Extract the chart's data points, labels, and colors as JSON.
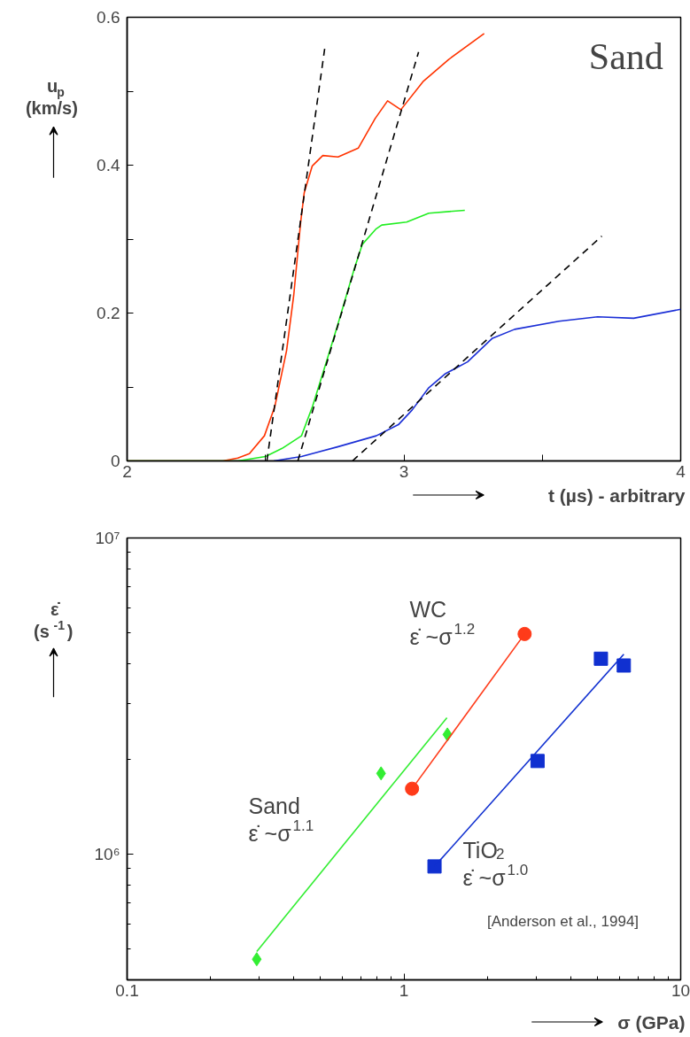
{
  "chart_data": [
    {
      "type": "line",
      "ylabel": "u$_{p}$\n(km/s)",
      "xlabel": "t (µs) - arbitrary",
      "annotations": [
        "Sand"
      ],
      "xlim": [
        2,
        4
      ],
      "ylim": [
        0,
        0.6
      ],
      "xticks": [
        2,
        {
          "value": 2.5,
          "label": null
        },
        3,
        {
          "value": 3.5,
          "label": null
        },
        4
      ],
      "yticks": [
        0,
        {
          "value": 0.1,
          "label": null
        },
        0.2,
        {
          "value": 0.3,
          "label": null
        },
        0.4,
        {
          "value": 0.5,
          "label": null
        },
        0.6
      ],
      "series": [
        {
          "color": "#ff3300",
          "x": [
            2.0,
            2.346,
            2.4,
            2.442,
            2.496,
            2.534,
            2.576,
            2.602,
            2.627,
            2.64,
            2.669,
            2.707,
            2.762,
            2.835,
            2.896,
            2.941,
            2.989,
            3.069,
            3.162,
            3.29
          ],
          "values": [
            0,
            0,
            0.004,
            0.01,
            0.034,
            0.074,
            0.149,
            0.224,
            0.323,
            0.363,
            0.399,
            0.413,
            0.411,
            0.423,
            0.463,
            0.487,
            0.475,
            0.513,
            0.543,
            0.578
          ]
        },
        {
          "color": "#22ee22",
          "x": [
            2.0,
            2.4,
            2.5,
            2.56,
            2.63,
            2.67,
            2.72,
            2.76,
            2.82,
            2.85,
            2.9,
            2.92,
            3.01,
            3.09,
            3.22
          ],
          "values": [
            0,
            0,
            0.006,
            0.017,
            0.034,
            0.074,
            0.134,
            0.183,
            0.259,
            0.293,
            0.314,
            0.319,
            0.323,
            0.335,
            0.339
          ]
        },
        {
          "color": "#1a2ed6",
          "x": [
            2.53,
            2.63,
            2.76,
            2.9,
            2.98,
            3.03,
            3.09,
            3.15,
            3.23,
            3.32,
            3.4,
            3.56,
            3.7,
            3.83,
            4.0
          ],
          "values": [
            0,
            0.006,
            0.019,
            0.034,
            0.049,
            0.069,
            0.099,
            0.118,
            0.134,
            0.166,
            0.178,
            0.189,
            0.195,
            0.193,
            0.205
          ]
        },
        {
          "color": "#000000",
          "line_style": "dashed",
          "x": [
            2.505,
            2.714
          ],
          "values": [
            0,
            0.558
          ]
        },
        {
          "color": "#000000",
          "line_style": "dashed",
          "x": [
            2.617,
            3.053
          ],
          "values": [
            0,
            0.553
          ]
        },
        {
          "color": "#000000",
          "line_style": "dashed",
          "x": [
            2.814,
            3.715
          ],
          "values": [
            0,
            0.304
          ]
        }
      ]
    },
    {
      "type": "scatter",
      "log": "xy",
      "ylabel": "ε̇\n(s$^{-1}$)",
      "xlabel": "σ (GPa)",
      "xlim": [
        0.1,
        10
      ],
      "ylim": [
        400000,
        10000000
      ],
      "xticks": [
        0.1,
        {
          "value": 0.2,
          "label": null
        },
        {
          "value": 0.3,
          "label": null
        },
        {
          "value": 0.4,
          "label": null
        },
        {
          "value": 0.5,
          "label": null
        },
        {
          "value": 0.6,
          "label": null
        },
        {
          "value": 0.7,
          "label": null
        },
        {
          "value": 0.8,
          "label": null
        },
        {
          "value": 0.9,
          "label": null
        },
        1,
        {
          "value": 2,
          "label": null
        },
        {
          "value": 3,
          "label": null
        },
        {
          "value": 4,
          "label": null
        },
        {
          "value": 5,
          "label": null
        },
        {
          "value": 6,
          "label": null
        },
        {
          "value": 7,
          "label": null
        },
        {
          "value": 8,
          "label": null
        },
        {
          "value": 9,
          "label": null
        },
        10
      ],
      "yticks": [
        {
          "value": 500000,
          "label": null
        },
        {
          "value": 600000,
          "label": null
        },
        {
          "value": 700000,
          "label": null
        },
        {
          "value": 800000,
          "label": null
        },
        {
          "value": 900000,
          "label": null
        },
        {
          "value": 1000000,
          "label": "10⁶"
        },
        {
          "value": 2000000,
          "label": null
        },
        {
          "value": 3000000,
          "label": null
        },
        {
          "value": 4000000,
          "label": null
        },
        {
          "value": 5000000,
          "label": null
        },
        {
          "value": 6000000,
          "label": null
        },
        {
          "value": 7000000,
          "label": null
        },
        {
          "value": 8000000,
          "label": null
        },
        {
          "value": 9000000,
          "label": null
        },
        {
          "value": 10000000,
          "label": "10⁷"
        }
      ],
      "annotations": [
        "WC\nε̇ ~σ$^{1.2}$",
        "Sand\nε̇ ~σ$^{1.1}$",
        "TiO$_{2}$\nε̇ ~σ$^{1.0}$",
        "[Anderson et al., 1994]"
      ],
      "series": [
        {
          "type": "scatter",
          "marker": "diamond",
          "color": "#33ee33",
          "x": [
            0.294,
            0.827,
            1.436
          ],
          "values": [
            465000,
            1800000,
            2390000
          ]
        },
        {
          "type": "line",
          "color": "#33ee33",
          "x": [
            0.294,
            1.43
          ],
          "values": [
            492000,
            2700000
          ]
        },
        {
          "type": "scatter",
          "marker": "circle",
          "color": "#ff3b1a",
          "x": [
            1.07,
            2.73
          ],
          "values": [
            1610000,
            4970000
          ]
        },
        {
          "type": "line",
          "color": "#ff3b1a",
          "x": [
            1.07,
            2.73
          ],
          "values": [
            1610000,
            4970000
          ]
        },
        {
          "type": "scatter",
          "marker": "square",
          "color": "#1030d0",
          "x": [
            1.29,
            3.04,
            5.15,
            6.23
          ],
          "values": [
            914000,
            1970000,
            4150000,
            3950000
          ]
        },
        {
          "type": "line",
          "color": "#1030d0",
          "x": [
            1.29,
            6.23
          ],
          "values": [
            914000,
            4290000
          ]
        }
      ]
    }
  ]
}
